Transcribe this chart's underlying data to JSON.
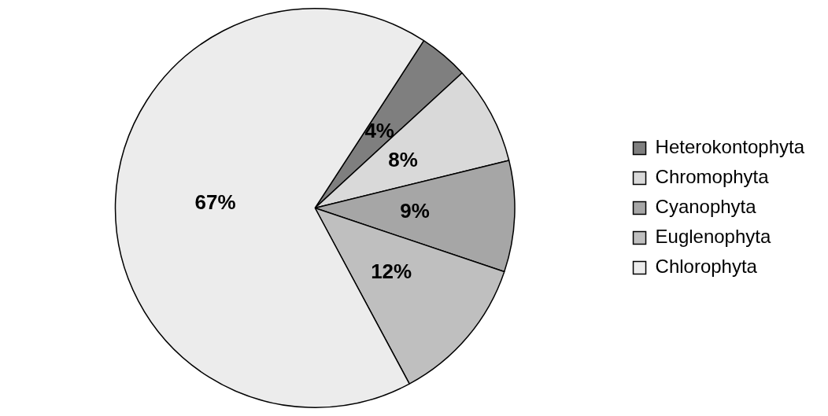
{
  "chart_data": {
    "type": "pie",
    "categories": [
      "Heterokontophyta",
      "Chromophyta",
      "Cyanophyta",
      "Euglenophyta",
      "Chlorophyta"
    ],
    "values": [
      4,
      8,
      9,
      12,
      67
    ],
    "colors": [
      "#7f7f7f",
      "#d9d9d9",
      "#a6a6a6",
      "#bfbfbf",
      "#ececec"
    ],
    "value_labels": [
      "4%",
      "8%",
      "9%",
      "12%",
      "67%"
    ],
    "legend": "right"
  }
}
